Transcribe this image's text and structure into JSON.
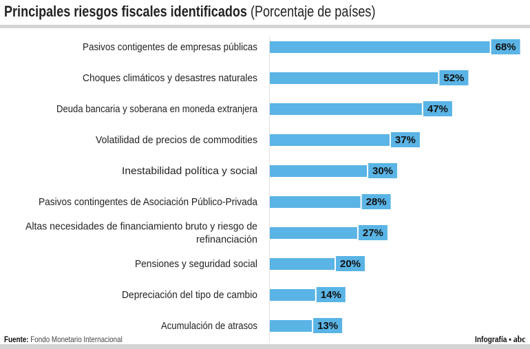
{
  "chart_data": {
    "type": "bar",
    "title": "Principales riesgos fiscales identificados",
    "subtitle": "(Porcentaje de países)",
    "categories": [
      "Pasivos contigentes de empresas públicas",
      "Choques climáticos y desastres naturales",
      "Deuda bancaria y soberana en moneda extranjera",
      "Volatilidad de precios de commodities",
      "Inestabilidad política y social",
      "Pasivos contingentes de Asociación Público-Privada",
      "Altas necesidades de financiamiento bruto y riesgo de refinanciación",
      "Pensiones y seguridad social",
      "Depreciación del tipo de cambio",
      "Acumulación de atrasos"
    ],
    "values": [
      68,
      52,
      47,
      37,
      30,
      28,
      27,
      20,
      14,
      13
    ],
    "data_labels": [
      "68%",
      "52%",
      "47%",
      "37%",
      "30%",
      "28%",
      "27%",
      "20%",
      "14%",
      "13%"
    ],
    "orientation": "horizontal",
    "xlim": [
      0,
      100
    ],
    "bar_color": "#5ab4e5"
  },
  "footer": {
    "source_label": "Fuente:",
    "source": "Fondo Monetario Internacional",
    "credit": "Infografía •",
    "logo": "abc"
  }
}
